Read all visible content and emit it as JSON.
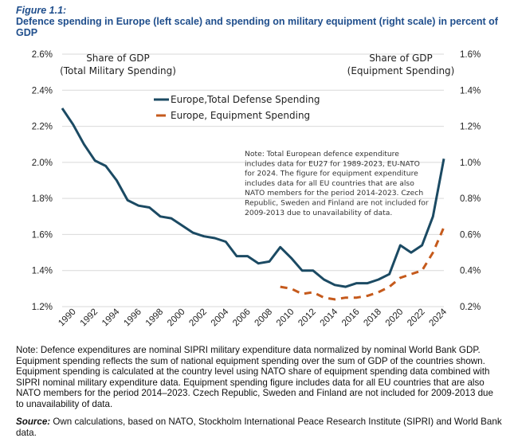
{
  "figure_label": "Figure 1.1:",
  "title": "Defence spending in Europe (left scale) and spending on military equipment (right scale) in percent of GDP",
  "chart_data": {
    "type": "line",
    "left_axis": {
      "label_line1": "Share of GDP",
      "label_line2": "(Total Military Spending)",
      "range": [
        1.2,
        2.6
      ],
      "ticks": [
        "1.2%",
        "1.4%",
        "1.6%",
        "1.8%",
        "2.0%",
        "2.2%",
        "2.4%",
        "2.6%"
      ]
    },
    "right_axis": {
      "label_line1": "Share of GDP",
      "label_line2": "(Equipment Spending)",
      "range": [
        0.2,
        1.6
      ],
      "ticks": [
        "0.2%",
        "0.4%",
        "0.6%",
        "0.8%",
        "1.0%",
        "1.2%",
        "1.4%",
        "1.6%"
      ]
    },
    "x_range": [
      1989,
      2024
    ],
    "x_ticks": [
      "1990",
      "1992",
      "1994",
      "1996",
      "1998",
      "2000",
      "2002",
      "2004",
      "2006",
      "2008",
      "2010",
      "2012",
      "2014",
      "2016",
      "2018",
      "2020",
      "2022",
      "2024"
    ],
    "grid": true,
    "legend_position": "top-center",
    "series": [
      {
        "name": "Europe,Total Defense Spending",
        "axis": "left",
        "color": "#1b4a63",
        "style": "solid",
        "x": [
          1989,
          1990,
          1991,
          1992,
          1993,
          1994,
          1995,
          1996,
          1997,
          1998,
          1999,
          2000,
          2001,
          2002,
          2003,
          2004,
          2005,
          2006,
          2007,
          2008,
          2009,
          2010,
          2011,
          2012,
          2013,
          2014,
          2015,
          2016,
          2017,
          2018,
          2019,
          2020,
          2021,
          2022,
          2023,
          2024
        ],
        "y": [
          2.3,
          2.21,
          2.1,
          2.01,
          1.98,
          1.9,
          1.79,
          1.76,
          1.75,
          1.7,
          1.69,
          1.65,
          1.61,
          1.59,
          1.58,
          1.56,
          1.48,
          1.48,
          1.44,
          1.45,
          1.53,
          1.47,
          1.4,
          1.4,
          1.35,
          1.32,
          1.31,
          1.33,
          1.33,
          1.35,
          1.38,
          1.54,
          1.5,
          1.54,
          1.7,
          2.02
        ]
      },
      {
        "name": "Europe, Equipment Spending",
        "axis": "right",
        "color": "#c55a1c",
        "style": "dashed",
        "x": [
          2009,
          2010,
          2011,
          2012,
          2013,
          2014,
          2015,
          2016,
          2017,
          2018,
          2019,
          2020,
          2021,
          2022,
          2023,
          2024
        ],
        "y": [
          0.31,
          0.3,
          0.27,
          0.28,
          0.25,
          0.24,
          0.25,
          0.25,
          0.26,
          0.28,
          0.31,
          0.36,
          0.38,
          0.4,
          0.5,
          0.64
        ]
      }
    ],
    "annotation": [
      "Note: Total European defence expenditure",
      "includes data for EU27 for 1989-2023, EU-NATO",
      "for 2024. The figure for equipment expenditure",
      "includes data for all EU countries that are also",
      "NATO members for the period 2014-2023. Czech",
      "Republic, Sweden and Finland are not included for",
      "2009-2013 due to unavailability of data."
    ]
  },
  "note": "Note: Defence expenditures are nominal SIPRI military expenditure data normalized by nominal World Bank GDP. Equipment spending reflects the sum of national equipment spending over the sum of GDP of the countries shown. Equipment spending is calculated at the country level using NATO share of equipment spending data combined with SIPRI nominal military expenditure data. Equipment spending figure includes data for all EU countries that are also NATO members for the period 2014–2023. Czech Republic, Sweden and Finland are not included for 2009-2013 due to unavailability of data.",
  "source_label": "Source:",
  "source_text": " Own calculations, based on NATO, Stockholm International Peace Research Institute (SIPRI) and World Bank data."
}
